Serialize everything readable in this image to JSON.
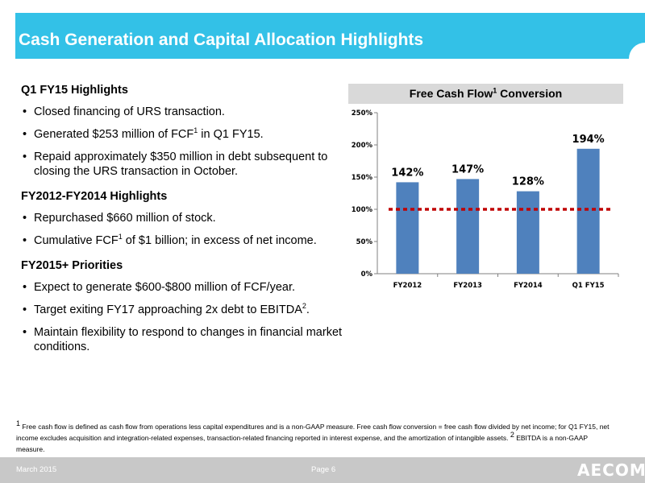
{
  "header": {
    "title": "Cash Generation and Capital Allocation Highlights"
  },
  "left": {
    "sections": [
      {
        "heading": "Q1 FY15 Highlights",
        "bullets": [
          {
            "text": "Closed financing of URS transaction."
          },
          {
            "pre": "Generated $253 million of FCF",
            "sup": "1",
            "post": " in Q1 FY15."
          },
          {
            "text": "Repaid approximately $350 million in debt subsequent to closing the URS transaction in October."
          }
        ]
      },
      {
        "heading": "FY2012-FY2014 Highlights",
        "bullets": [
          {
            "text": "Repurchased $660 million of stock."
          },
          {
            "pre": "Cumulative FCF",
            "sup": "1",
            "post": " of $1 billion; in excess of net income."
          }
        ]
      },
      {
        "heading": "FY2015+ Priorities",
        "bullets": [
          {
            "text": "Expect to generate $600-$800 million of FCF/year."
          },
          {
            "pre": "Target exiting FY17 approaching 2x debt to EBITDA",
            "sup": "2",
            "post": "."
          },
          {
            "text": "Maintain flexibility to respond to changes in financial market conditions."
          }
        ]
      }
    ]
  },
  "chart_header": {
    "pre": "Free Cash Flow",
    "sup": "1",
    "post": " Conversion"
  },
  "chart_data": {
    "type": "bar",
    "categories": [
      "FY2012",
      "FY2013",
      "FY2014",
      "Q1 FY15"
    ],
    "values": [
      142,
      147,
      128,
      194
    ],
    "data_labels": [
      "142%",
      "147%",
      "128%",
      "194%"
    ],
    "y_ticks": [
      "0%",
      "50%",
      "100%",
      "150%",
      "200%",
      "250%"
    ],
    "ylim": [
      0,
      250
    ],
    "reference_line": 100,
    "bar_color": "#4f81bd",
    "reference_color": "#c00000",
    "grid": false
  },
  "footnote": {
    "sup1": "1",
    "text1": " Free cash flow is defined as cash flow from operations less capital expenditures and is a non-GAAP measure. Free cash flow conversion = free cash flow divided by net income; for Q1 FY15, net income excludes acquisition and integration-related expenses, transaction-related financing reported in interest expense, and the amortization of intangible assets.   ",
    "sup2": "2",
    "text2": " EBITDA is a non-GAAP measure."
  },
  "footer": {
    "date": "March 2015",
    "page": "Page 6",
    "logo": "AECOM"
  },
  "colors": {
    "banner": "#33c1e7",
    "footer": "#c8c8c8"
  }
}
